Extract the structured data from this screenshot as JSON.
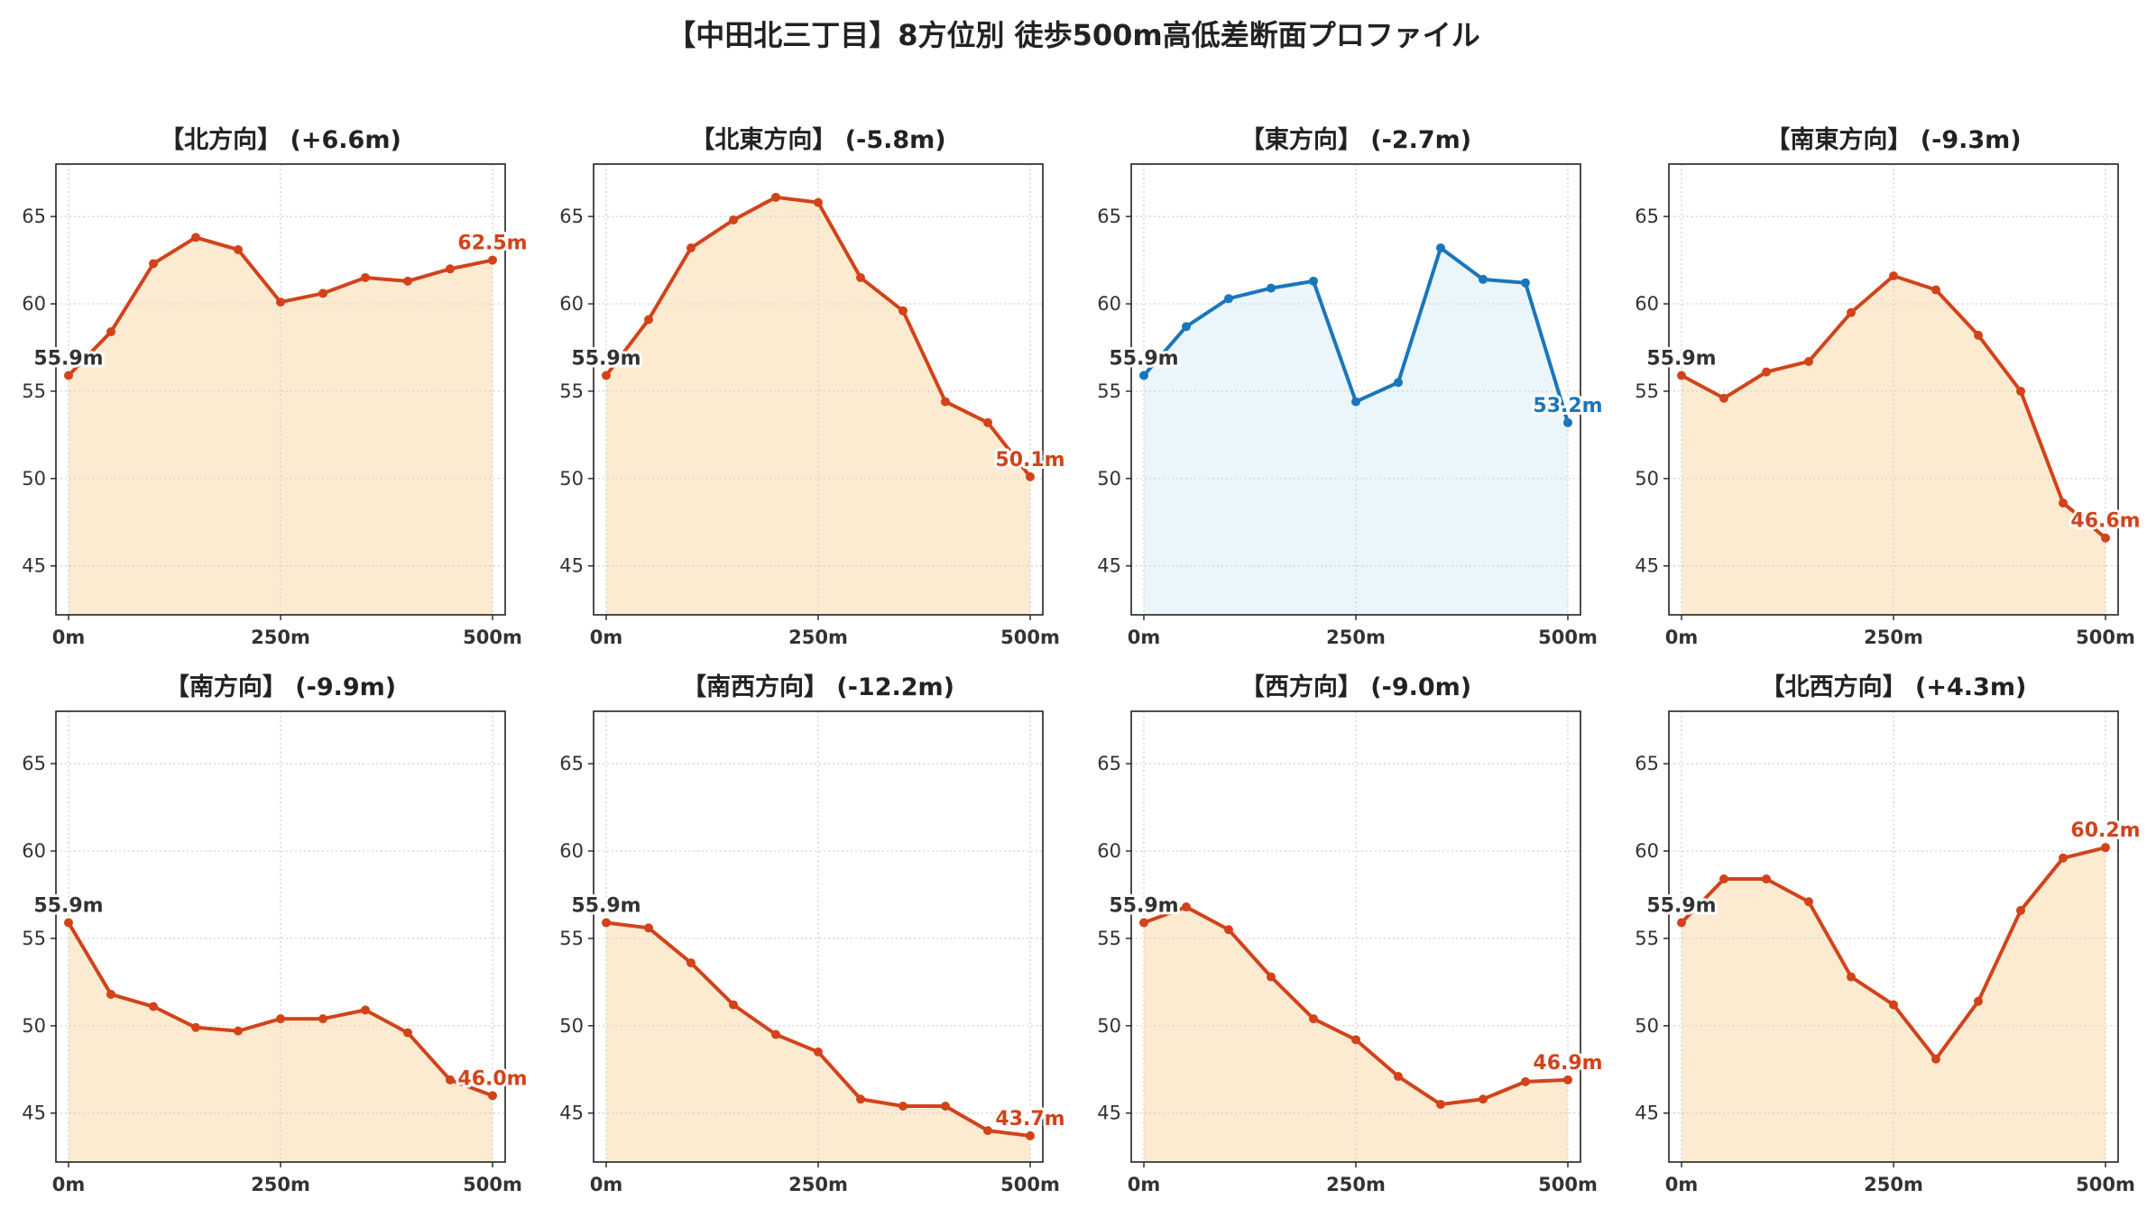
{
  "title": "【中田北三丁目】8方位別 徒歩500m高低差断面プロファイル",
  "colors": {
    "down": "#d2431a",
    "down_fill": "#fdebd1",
    "up": "#1a76bb",
    "up_fill": "#eaf6fb",
    "start_label": "#333333",
    "grid": "#cfcfcf"
  },
  "chart_data": [
    {
      "type": "area",
      "title": "【北方向】 (+6.6m)",
      "highlight": "down",
      "x": [
        0,
        50,
        100,
        150,
        200,
        250,
        300,
        350,
        400,
        450,
        500
      ],
      "values": [
        55.9,
        58.4,
        62.3,
        63.8,
        63.1,
        60.1,
        60.6,
        61.5,
        61.3,
        62.0,
        62.5
      ],
      "start_label": "55.9m",
      "end_label": "62.5m",
      "ylim": [
        42.2,
        68
      ],
      "yticks": [
        45,
        50,
        55,
        60,
        65
      ],
      "xticks": [
        0,
        250,
        500
      ],
      "xtick_labels": [
        "0m",
        "250m",
        "500m"
      ],
      "grid": true
    },
    {
      "type": "area",
      "title": "【北東方向】 (-5.8m)",
      "highlight": "down",
      "x": [
        0,
        50,
        100,
        150,
        200,
        250,
        300,
        350,
        400,
        450,
        500
      ],
      "values": [
        55.9,
        59.1,
        63.2,
        64.8,
        66.1,
        65.8,
        61.5,
        59.6,
        54.4,
        53.2,
        50.1
      ],
      "start_label": "55.9m",
      "end_label": "50.1m",
      "ylim": [
        42.2,
        68
      ],
      "yticks": [
        45,
        50,
        55,
        60,
        65
      ],
      "xticks": [
        0,
        250,
        500
      ],
      "xtick_labels": [
        "0m",
        "250m",
        "500m"
      ],
      "grid": true
    },
    {
      "type": "area",
      "title": "【東方向】 (-2.7m)",
      "highlight": "up",
      "x": [
        0,
        50,
        100,
        150,
        200,
        250,
        300,
        350,
        400,
        450,
        500
      ],
      "values": [
        55.9,
        58.7,
        60.3,
        60.9,
        61.3,
        54.4,
        55.5,
        63.2,
        61.4,
        61.2,
        53.2
      ],
      "start_label": "55.9m",
      "end_label": "53.2m",
      "ylim": [
        42.2,
        68
      ],
      "yticks": [
        45,
        50,
        55,
        60,
        65
      ],
      "xticks": [
        0,
        250,
        500
      ],
      "xtick_labels": [
        "0m",
        "250m",
        "500m"
      ],
      "grid": true
    },
    {
      "type": "area",
      "title": "【南東方向】 (-9.3m)",
      "highlight": "down",
      "x": [
        0,
        50,
        100,
        150,
        200,
        250,
        300,
        350,
        400,
        450,
        500
      ],
      "values": [
        55.9,
        54.6,
        56.1,
        56.7,
        59.5,
        61.6,
        60.8,
        58.2,
        55.0,
        48.6,
        46.6
      ],
      "start_label": "55.9m",
      "end_label": "46.6m",
      "ylim": [
        42.2,
        68
      ],
      "yticks": [
        45,
        50,
        55,
        60,
        65
      ],
      "xticks": [
        0,
        250,
        500
      ],
      "xtick_labels": [
        "0m",
        "250m",
        "500m"
      ],
      "grid": true
    },
    {
      "type": "area",
      "title": "【南方向】 (-9.9m)",
      "highlight": "down",
      "x": [
        0,
        50,
        100,
        150,
        200,
        250,
        300,
        350,
        400,
        450,
        500
      ],
      "values": [
        55.9,
        51.8,
        51.1,
        49.9,
        49.7,
        50.4,
        50.4,
        50.9,
        49.6,
        46.9,
        46.0
      ],
      "start_label": "55.9m",
      "end_label": "46.0m",
      "ylim": [
        42.2,
        68
      ],
      "yticks": [
        45,
        50,
        55,
        60,
        65
      ],
      "xticks": [
        0,
        250,
        500
      ],
      "xtick_labels": [
        "0m",
        "250m",
        "500m"
      ],
      "grid": true
    },
    {
      "type": "area",
      "title": "【南西方向】 (-12.2m)",
      "highlight": "down",
      "x": [
        0,
        50,
        100,
        150,
        200,
        250,
        300,
        350,
        400,
        450,
        500
      ],
      "values": [
        55.9,
        55.6,
        53.6,
        51.2,
        49.5,
        48.5,
        45.8,
        45.4,
        45.4,
        44.0,
        43.7
      ],
      "start_label": "55.9m",
      "end_label": "43.7m",
      "ylim": [
        42.2,
        68
      ],
      "yticks": [
        45,
        50,
        55,
        60,
        65
      ],
      "xticks": [
        0,
        250,
        500
      ],
      "xtick_labels": [
        "0m",
        "250m",
        "500m"
      ],
      "grid": true
    },
    {
      "type": "area",
      "title": "【西方向】 (-9.0m)",
      "highlight": "down",
      "x": [
        0,
        50,
        100,
        150,
        200,
        250,
        300,
        350,
        400,
        450,
        500
      ],
      "values": [
        55.9,
        56.8,
        55.5,
        52.8,
        50.4,
        49.2,
        47.1,
        45.5,
        45.8,
        46.8,
        46.9
      ],
      "start_label": "55.9m",
      "end_label": "46.9m",
      "ylim": [
        42.2,
        68
      ],
      "yticks": [
        45,
        50,
        55,
        60,
        65
      ],
      "xticks": [
        0,
        250,
        500
      ],
      "xtick_labels": [
        "0m",
        "250m",
        "500m"
      ],
      "grid": true
    },
    {
      "type": "area",
      "title": "【北西方向】 (+4.3m)",
      "highlight": "down",
      "x": [
        0,
        50,
        100,
        150,
        200,
        250,
        300,
        350,
        400,
        450,
        500
      ],
      "values": [
        55.9,
        58.4,
        58.4,
        57.1,
        52.8,
        51.2,
        48.1,
        51.4,
        56.6,
        59.6,
        60.2
      ],
      "start_label": "55.9m",
      "end_label": "60.2m",
      "ylim": [
        42.2,
        68
      ],
      "yticks": [
        45,
        50,
        55,
        60,
        65
      ],
      "xticks": [
        0,
        250,
        500
      ],
      "xtick_labels": [
        "0m",
        "250m",
        "500m"
      ],
      "grid": true
    }
  ]
}
